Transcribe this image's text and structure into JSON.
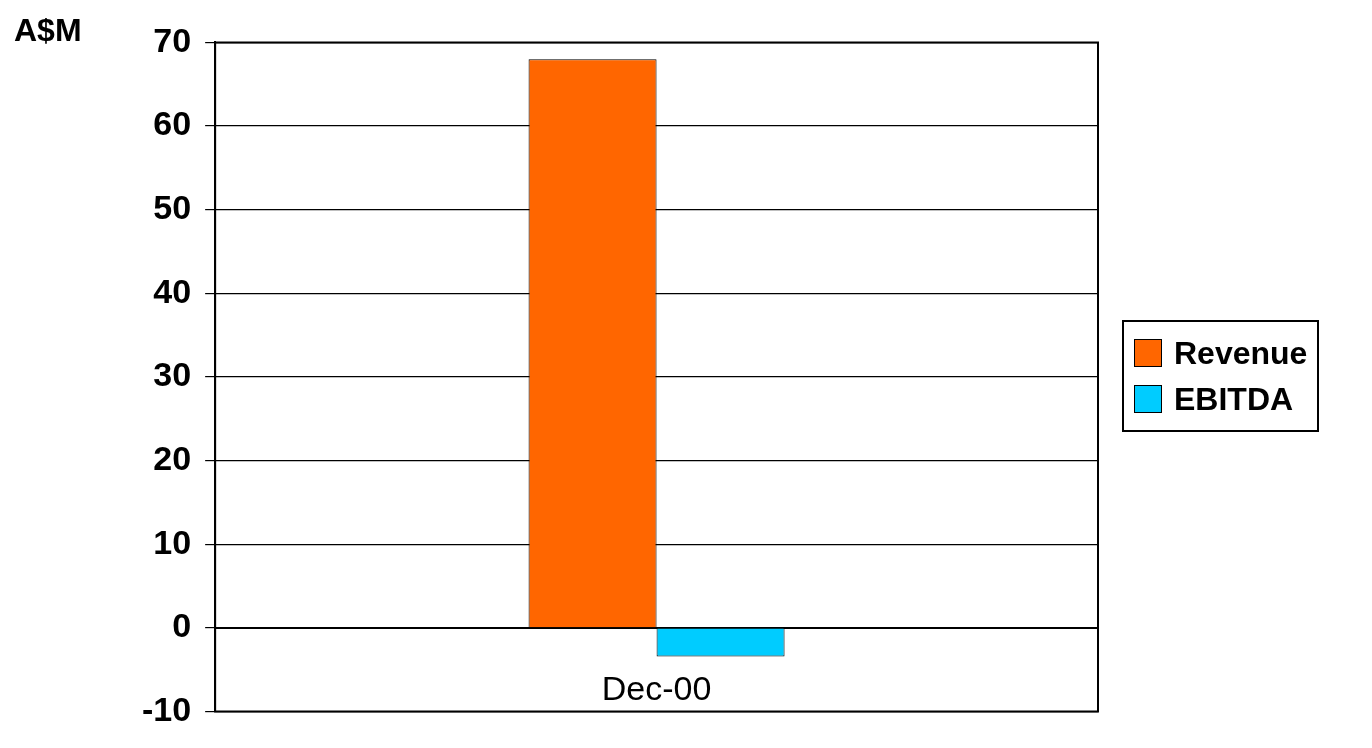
{
  "chart_data": {
    "type": "bar",
    "ylabel": "A$M",
    "categories": [
      "Dec-00"
    ],
    "series": [
      {
        "name": "Revenue",
        "color": "#ff6600",
        "values": [
          68
        ]
      },
      {
        "name": "EBITDA",
        "color": "#00ccff",
        "values": [
          -3.4
        ]
      }
    ],
    "ylim": [
      -10,
      70
    ],
    "yticks": [
      -10,
      0,
      10,
      20,
      30,
      40,
      50,
      60,
      70
    ],
    "grid": "y",
    "legend": "right"
  }
}
